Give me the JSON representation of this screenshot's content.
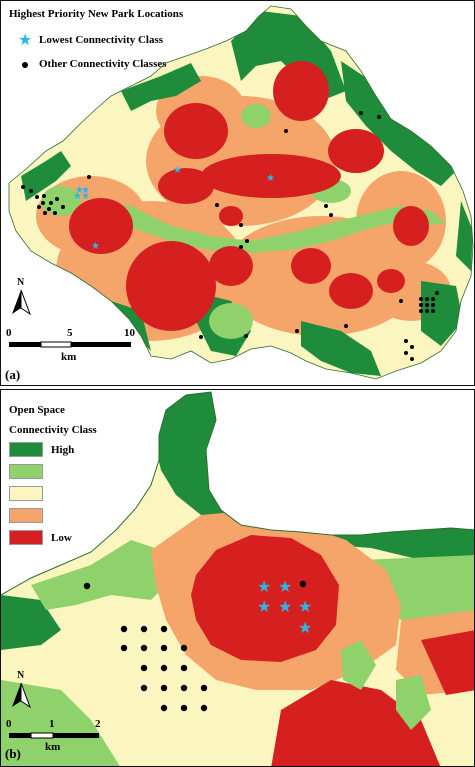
{
  "colors": {
    "high": "#1e8c3a",
    "medium_high": "#8fd16a",
    "medium": "#fbf6c0",
    "medium_low": "#f6a56a",
    "low": "#d61f1f",
    "river": "#8fd16a",
    "star": "#29b6e8",
    "dot": "#000000"
  },
  "panel_a": {
    "label": "(a)",
    "legend_title": "Highest Priority New Park Locations",
    "legend_star": "Lowest Connectivity Class",
    "legend_dot": "Other Connectivity Classes",
    "north": "N",
    "scale": {
      "t0": "0",
      "t1": "5",
      "t2": "10",
      "unit": "km"
    }
  },
  "panel_b": {
    "label": "(b)",
    "legend_title_1": "Open Space",
    "legend_title_2": "Connectivity Class",
    "classes": [
      "High",
      "",
      "",
      "",
      "Low"
    ],
    "north": "N",
    "scale": {
      "t0": "0",
      "t1": "1",
      "t2": "2",
      "unit": "km"
    }
  }
}
